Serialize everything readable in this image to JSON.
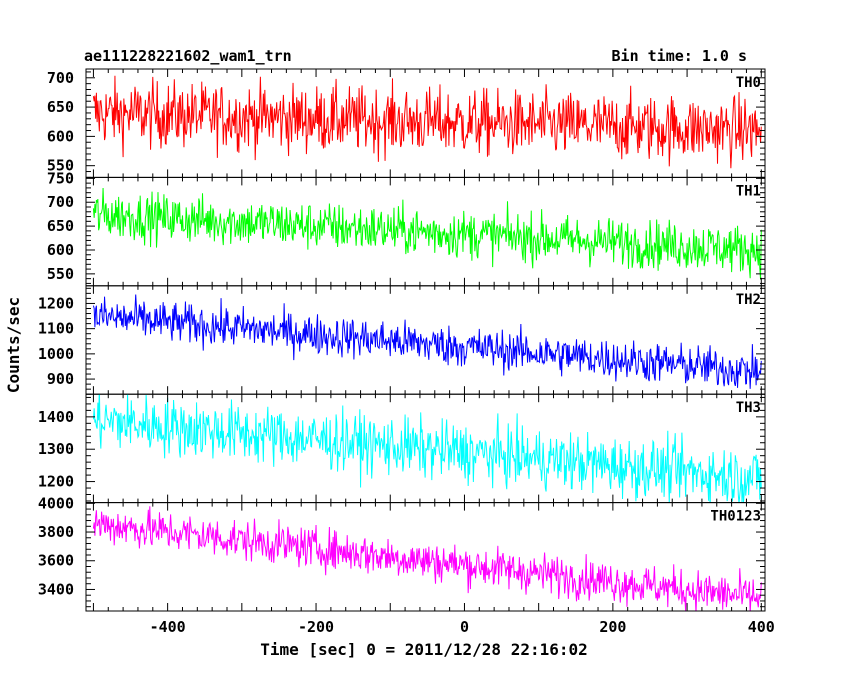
{
  "header": {
    "title": "ae111228221602_wam1_trn",
    "bin_time": "Bin time: 1.0 s"
  },
  "axes": {
    "xlabel": "Time [sec] 0 = 2011/12/28 22:16:02",
    "ylabel": "Counts/sec"
  },
  "chart_data": {
    "type": "line",
    "xlim": [
      -510,
      405
    ],
    "x_ticks": [
      -400,
      -200,
      0,
      200,
      400
    ],
    "x_range": [
      -500,
      400
    ],
    "bin_time": 1.0,
    "panels": [
      {
        "name": "TH0",
        "color": "#ff0000",
        "ylim": [
          530,
          715
        ],
        "y_ticks": [
          550,
          600,
          650,
          700
        ],
        "start": 640,
        "end": 610,
        "noise": 28
      },
      {
        "name": "TH1",
        "color": "#00ff00",
        "ylim": [
          525,
          752
        ],
        "y_ticks": [
          550,
          600,
          650,
          700,
          750
        ],
        "start": 675,
        "end": 600,
        "noise": 25
      },
      {
        "name": "TH2",
        "color": "#0000ff",
        "ylim": [
          840,
          1270
        ],
        "y_ticks": [
          900,
          1000,
          1100,
          1200
        ],
        "start": 1150,
        "end": 930,
        "noise": 40
      },
      {
        "name": "TH3",
        "color": "#00ffff",
        "ylim": [
          1135,
          1470
        ],
        "y_ticks": [
          1200,
          1300,
          1400
        ],
        "start": 1390,
        "end": 1210,
        "noise": 45
      },
      {
        "name": "TH0123",
        "color": "#ff00ff",
        "ylim": [
          3250,
          4005
        ],
        "y_ticks": [
          3400,
          3600,
          3800,
          4000
        ],
        "start": 3860,
        "end": 3340,
        "noise": 70
      }
    ]
  }
}
